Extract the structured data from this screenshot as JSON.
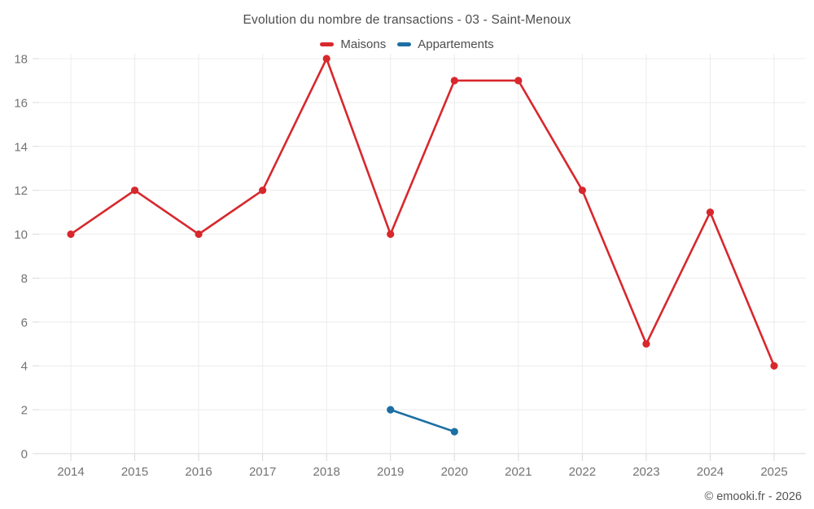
{
  "title": "Evolution du nombre de transactions - 03 - Saint-Menoux",
  "footer": "© emooki.fr - 2026",
  "legend": {
    "items": [
      {
        "label": "Maisons",
        "color": "#d7282d"
      },
      {
        "label": "Appartements",
        "color": "#1c6ea4"
      }
    ]
  },
  "chart_data": {
    "type": "line",
    "title": "Evolution du nombre de transactions - 03 - Saint-Menoux",
    "categories": [
      "2014",
      "2015",
      "2016",
      "2017",
      "2018",
      "2019",
      "2020",
      "2021",
      "2022",
      "2023",
      "2024",
      "2025"
    ],
    "series": [
      {
        "name": "Maisons",
        "color": "#d7282d",
        "values": [
          10,
          12,
          10,
          12,
          18,
          10,
          17,
          17,
          12,
          5,
          11,
          4
        ]
      },
      {
        "name": "Appartements",
        "color": "#1c6ea4",
        "values": [
          null,
          null,
          null,
          null,
          null,
          2,
          1,
          null,
          null,
          null,
          null,
          null
        ]
      }
    ],
    "xlabel": "",
    "ylabel": "",
    "ylim": [
      0,
      18
    ],
    "ytick_step": 2,
    "grid": true,
    "legend_position": "top"
  }
}
